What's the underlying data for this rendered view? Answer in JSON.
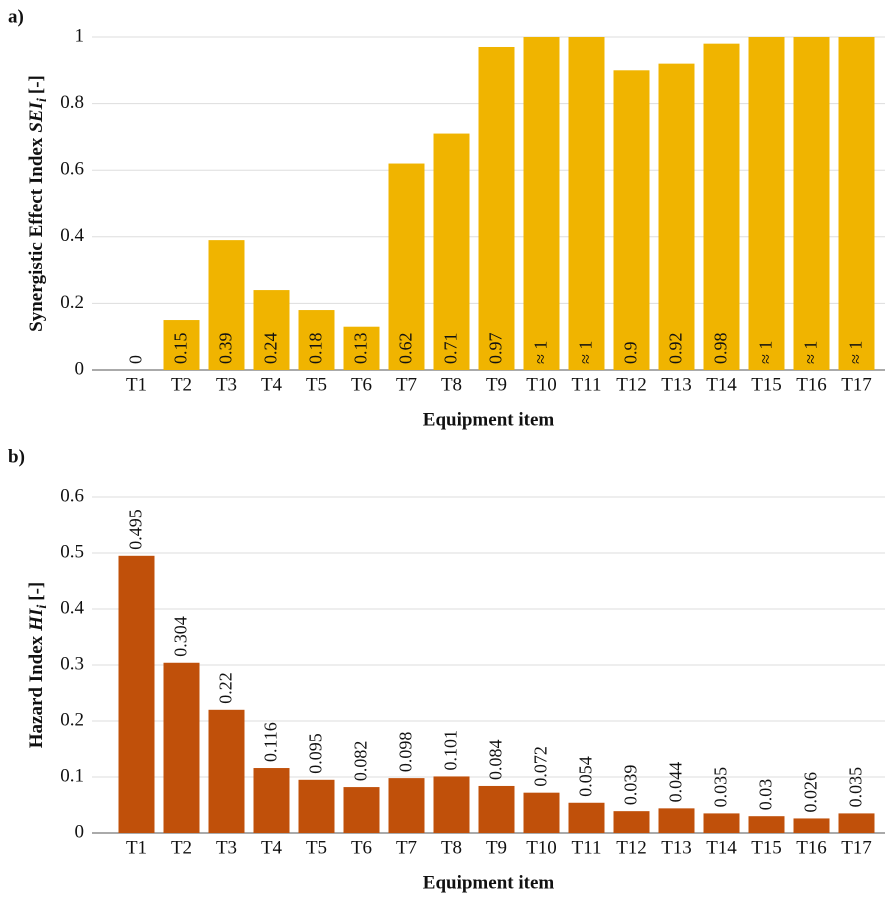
{
  "chart_data": [
    {
      "type": "bar",
      "panel": "a)",
      "y_label": "Synergistic Effect Index",
      "y_label_symbol": "SEI",
      "y_label_subscript": "i",
      "y_label_unit": "[-]",
      "x_label": "Equipment item",
      "categories": [
        "T1",
        "T2",
        "T3",
        "T4",
        "T5",
        "T6",
        "T7",
        "T8",
        "T9",
        "T10",
        "T11",
        "T12",
        "T13",
        "T14",
        "T15",
        "T16",
        "T17"
      ],
      "values": [
        0,
        0.15,
        0.39,
        0.24,
        0.18,
        0.13,
        0.62,
        0.71,
        0.97,
        1,
        1,
        0.9,
        0.92,
        0.98,
        1,
        1,
        1
      ],
      "value_labels": [
        "0",
        "0.15",
        "0.39",
        "0.24",
        "0.18",
        "0.13",
        "0.62",
        "0.71",
        "0.97",
        "≈ 1",
        "≈ 1",
        "0.9",
        "0.92",
        "0.98",
        "≈ 1",
        "≈ 1",
        "≈ 1"
      ],
      "color": "#f0b400",
      "ylim": [
        0,
        1
      ],
      "yticks": [
        0,
        0.2,
        0.4,
        0.6,
        0.8,
        1
      ],
      "grid": true
    },
    {
      "type": "bar",
      "panel": "b)",
      "y_label": "Hazard Index",
      "y_label_symbol": "HI",
      "y_label_subscript": "i",
      "y_label_unit": "[-]",
      "x_label": "Equipment item",
      "categories": [
        "T1",
        "T2",
        "T3",
        "T4",
        "T5",
        "T6",
        "T7",
        "T8",
        "T9",
        "T10",
        "T11",
        "T12",
        "T13",
        "T14",
        "T15",
        "T16",
        "T17"
      ],
      "values": [
        0.495,
        0.304,
        0.22,
        0.116,
        0.095,
        0.082,
        0.098,
        0.101,
        0.084,
        0.072,
        0.054,
        0.039,
        0.044,
        0.035,
        0.03,
        0.026,
        0.035
      ],
      "color": "#c0500a",
      "ylim": [
        0,
        0.6
      ],
      "yticks": [
        0,
        0.1,
        0.2,
        0.3,
        0.4,
        0.5,
        0.6
      ],
      "grid": true
    }
  ]
}
